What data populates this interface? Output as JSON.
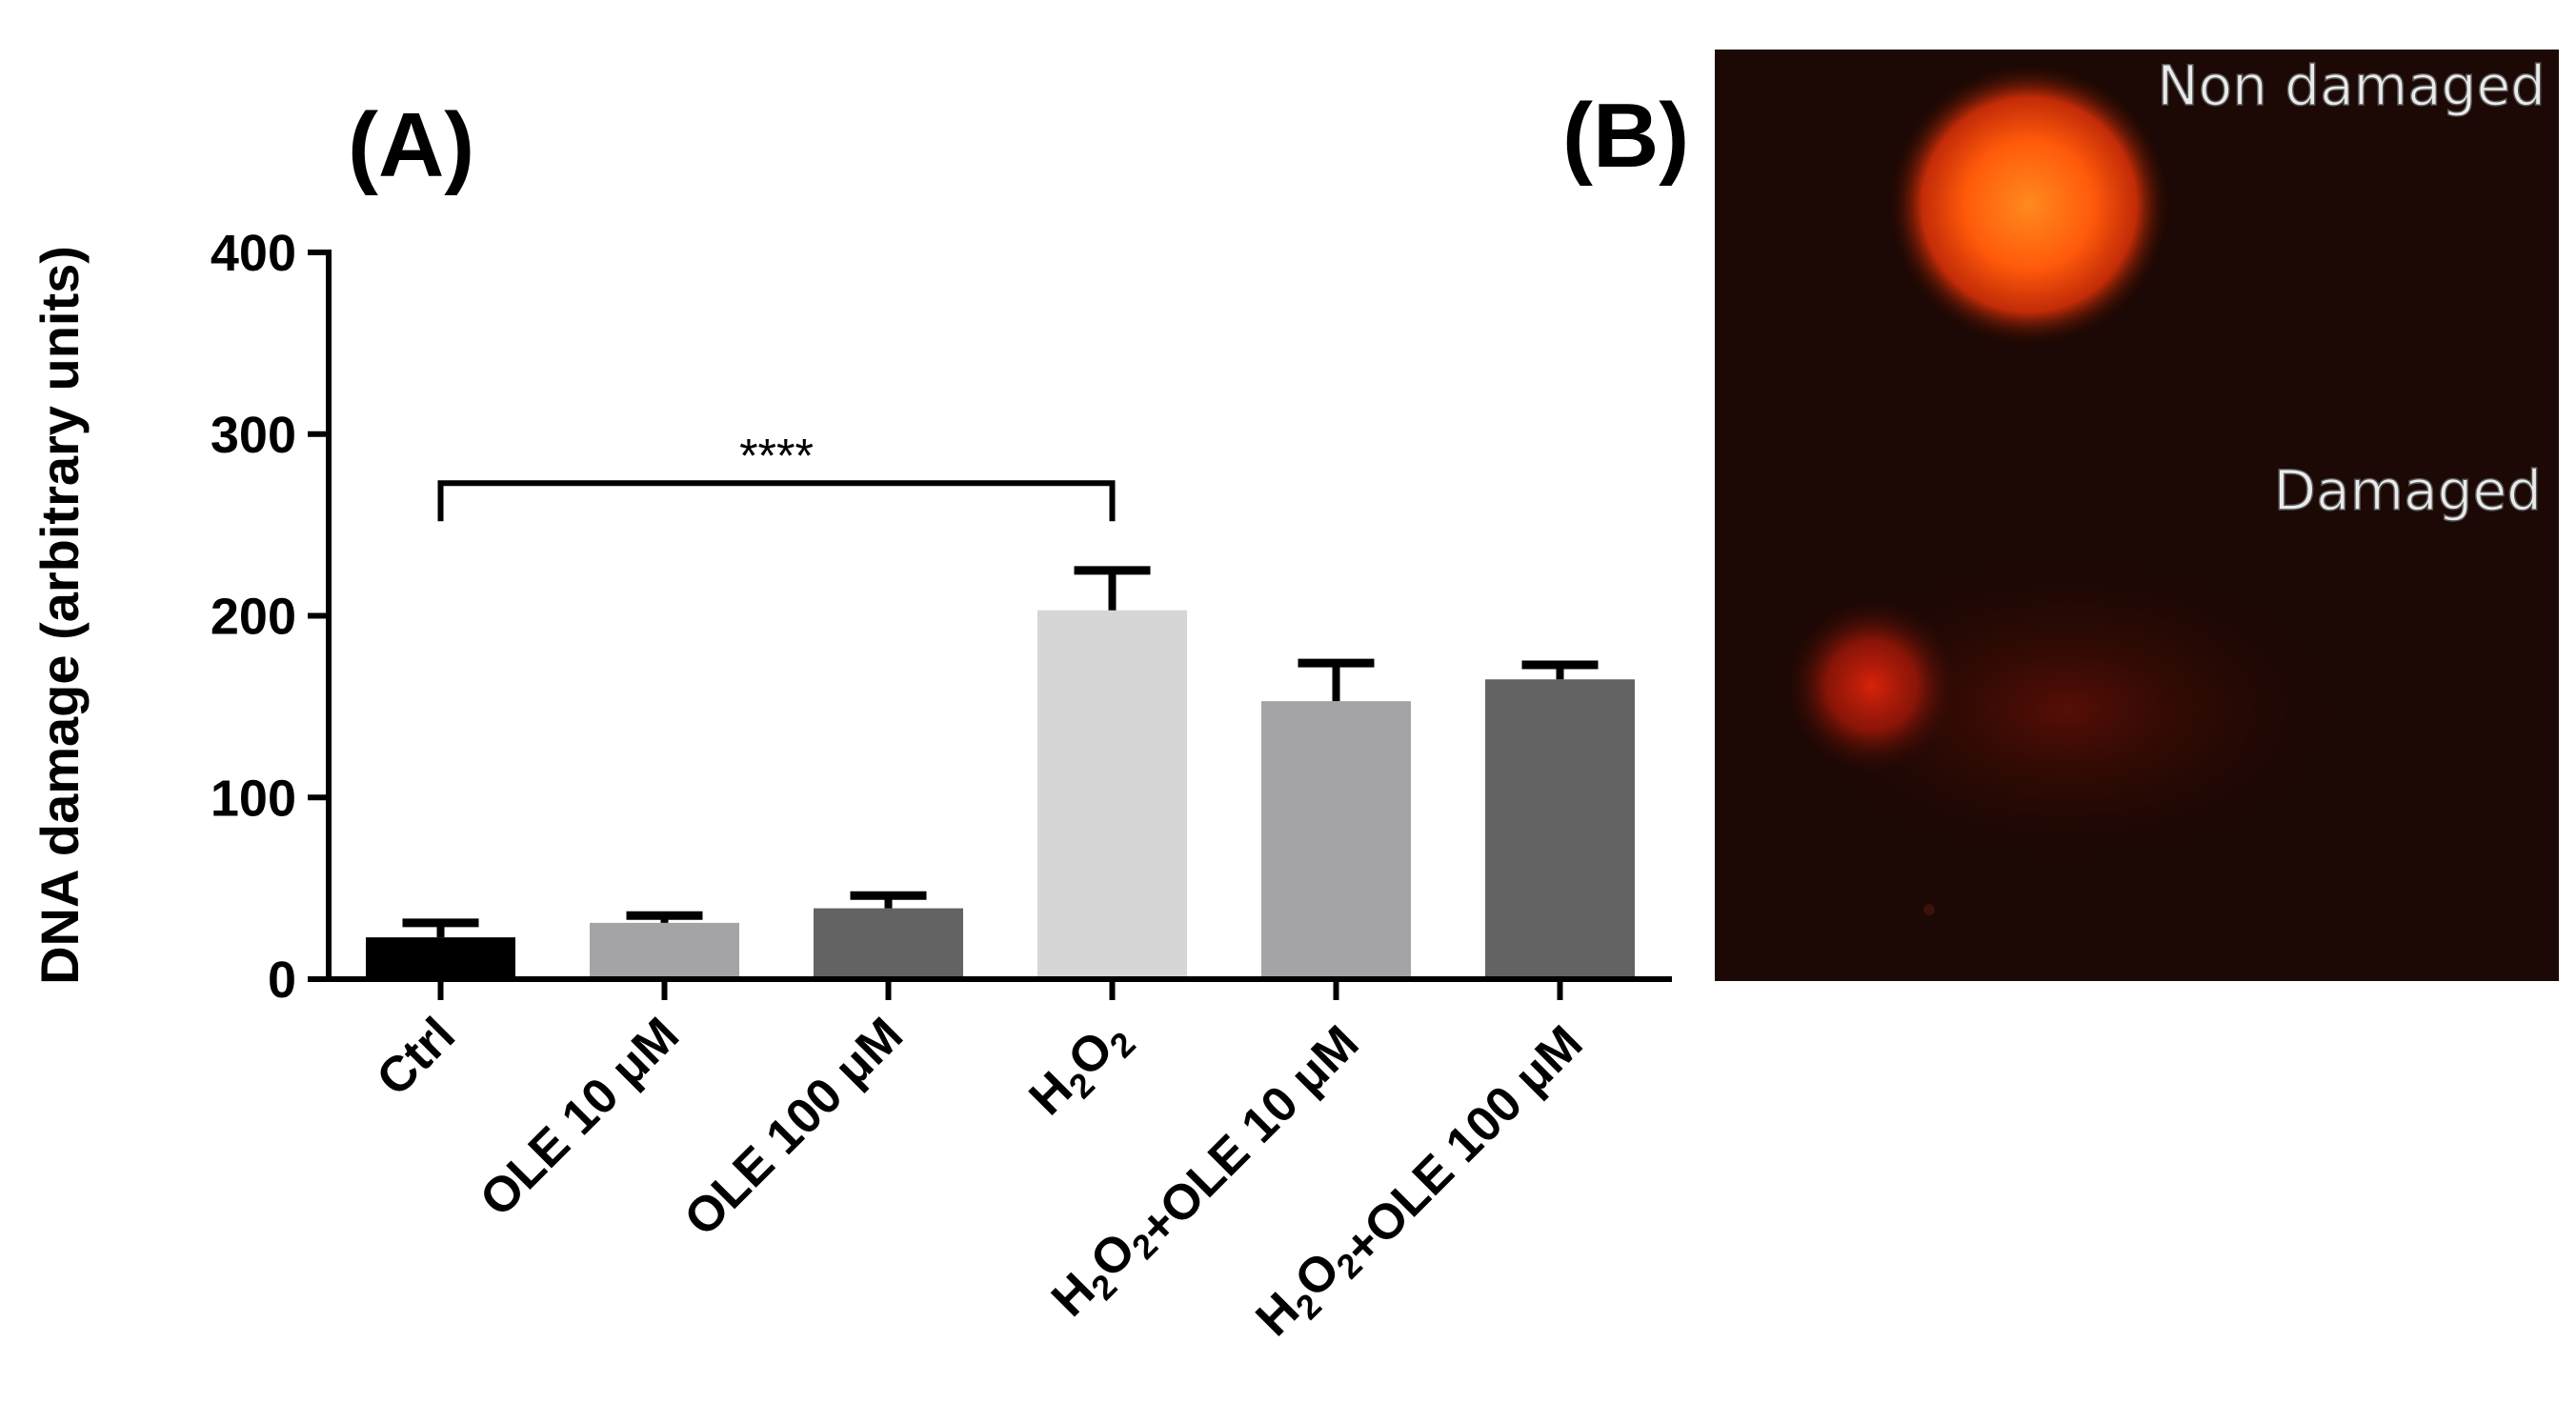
{
  "panels": {
    "a_label": "(A)",
    "b_label": "(B)"
  },
  "chart_data": {
    "type": "bar",
    "title": "",
    "xlabel": "",
    "ylabel": "DNA damage (arbitrary units)",
    "ylim": [
      0,
      400
    ],
    "yticks": [
      0,
      100,
      200,
      300,
      400
    ],
    "grid": false,
    "legend": "none",
    "categories": [
      {
        "id": "ctrl",
        "label": "Ctrl"
      },
      {
        "id": "ole10",
        "label": "OLE 10 μM"
      },
      {
        "id": "ole100",
        "label": "OLE 100 μM"
      },
      {
        "id": "h2o2",
        "label": "H2O2"
      },
      {
        "id": "h2o2ole10",
        "label": "H2O2+OLE 10 μM"
      },
      {
        "id": "h2o2ole100",
        "label": "H2O2+OLE 100 μM"
      }
    ],
    "values": [
      23,
      31,
      39,
      203,
      153,
      165
    ],
    "errors": [
      8,
      4,
      7,
      22,
      21,
      8
    ],
    "colors": [
      "#000000",
      "#a4a4a8",
      "#636363",
      "#d6d6d6",
      "#a4a4a8",
      "#636363"
    ],
    "significance": [
      {
        "from": 0,
        "to": 3,
        "text": "****",
        "y": 273
      }
    ]
  },
  "micrograph": {
    "label_top": "Non damaged",
    "label_bottom": "Damaged",
    "background": "#1c0804",
    "glow_bright": "#ff6a10",
    "glow_dim": "#c8200a"
  }
}
